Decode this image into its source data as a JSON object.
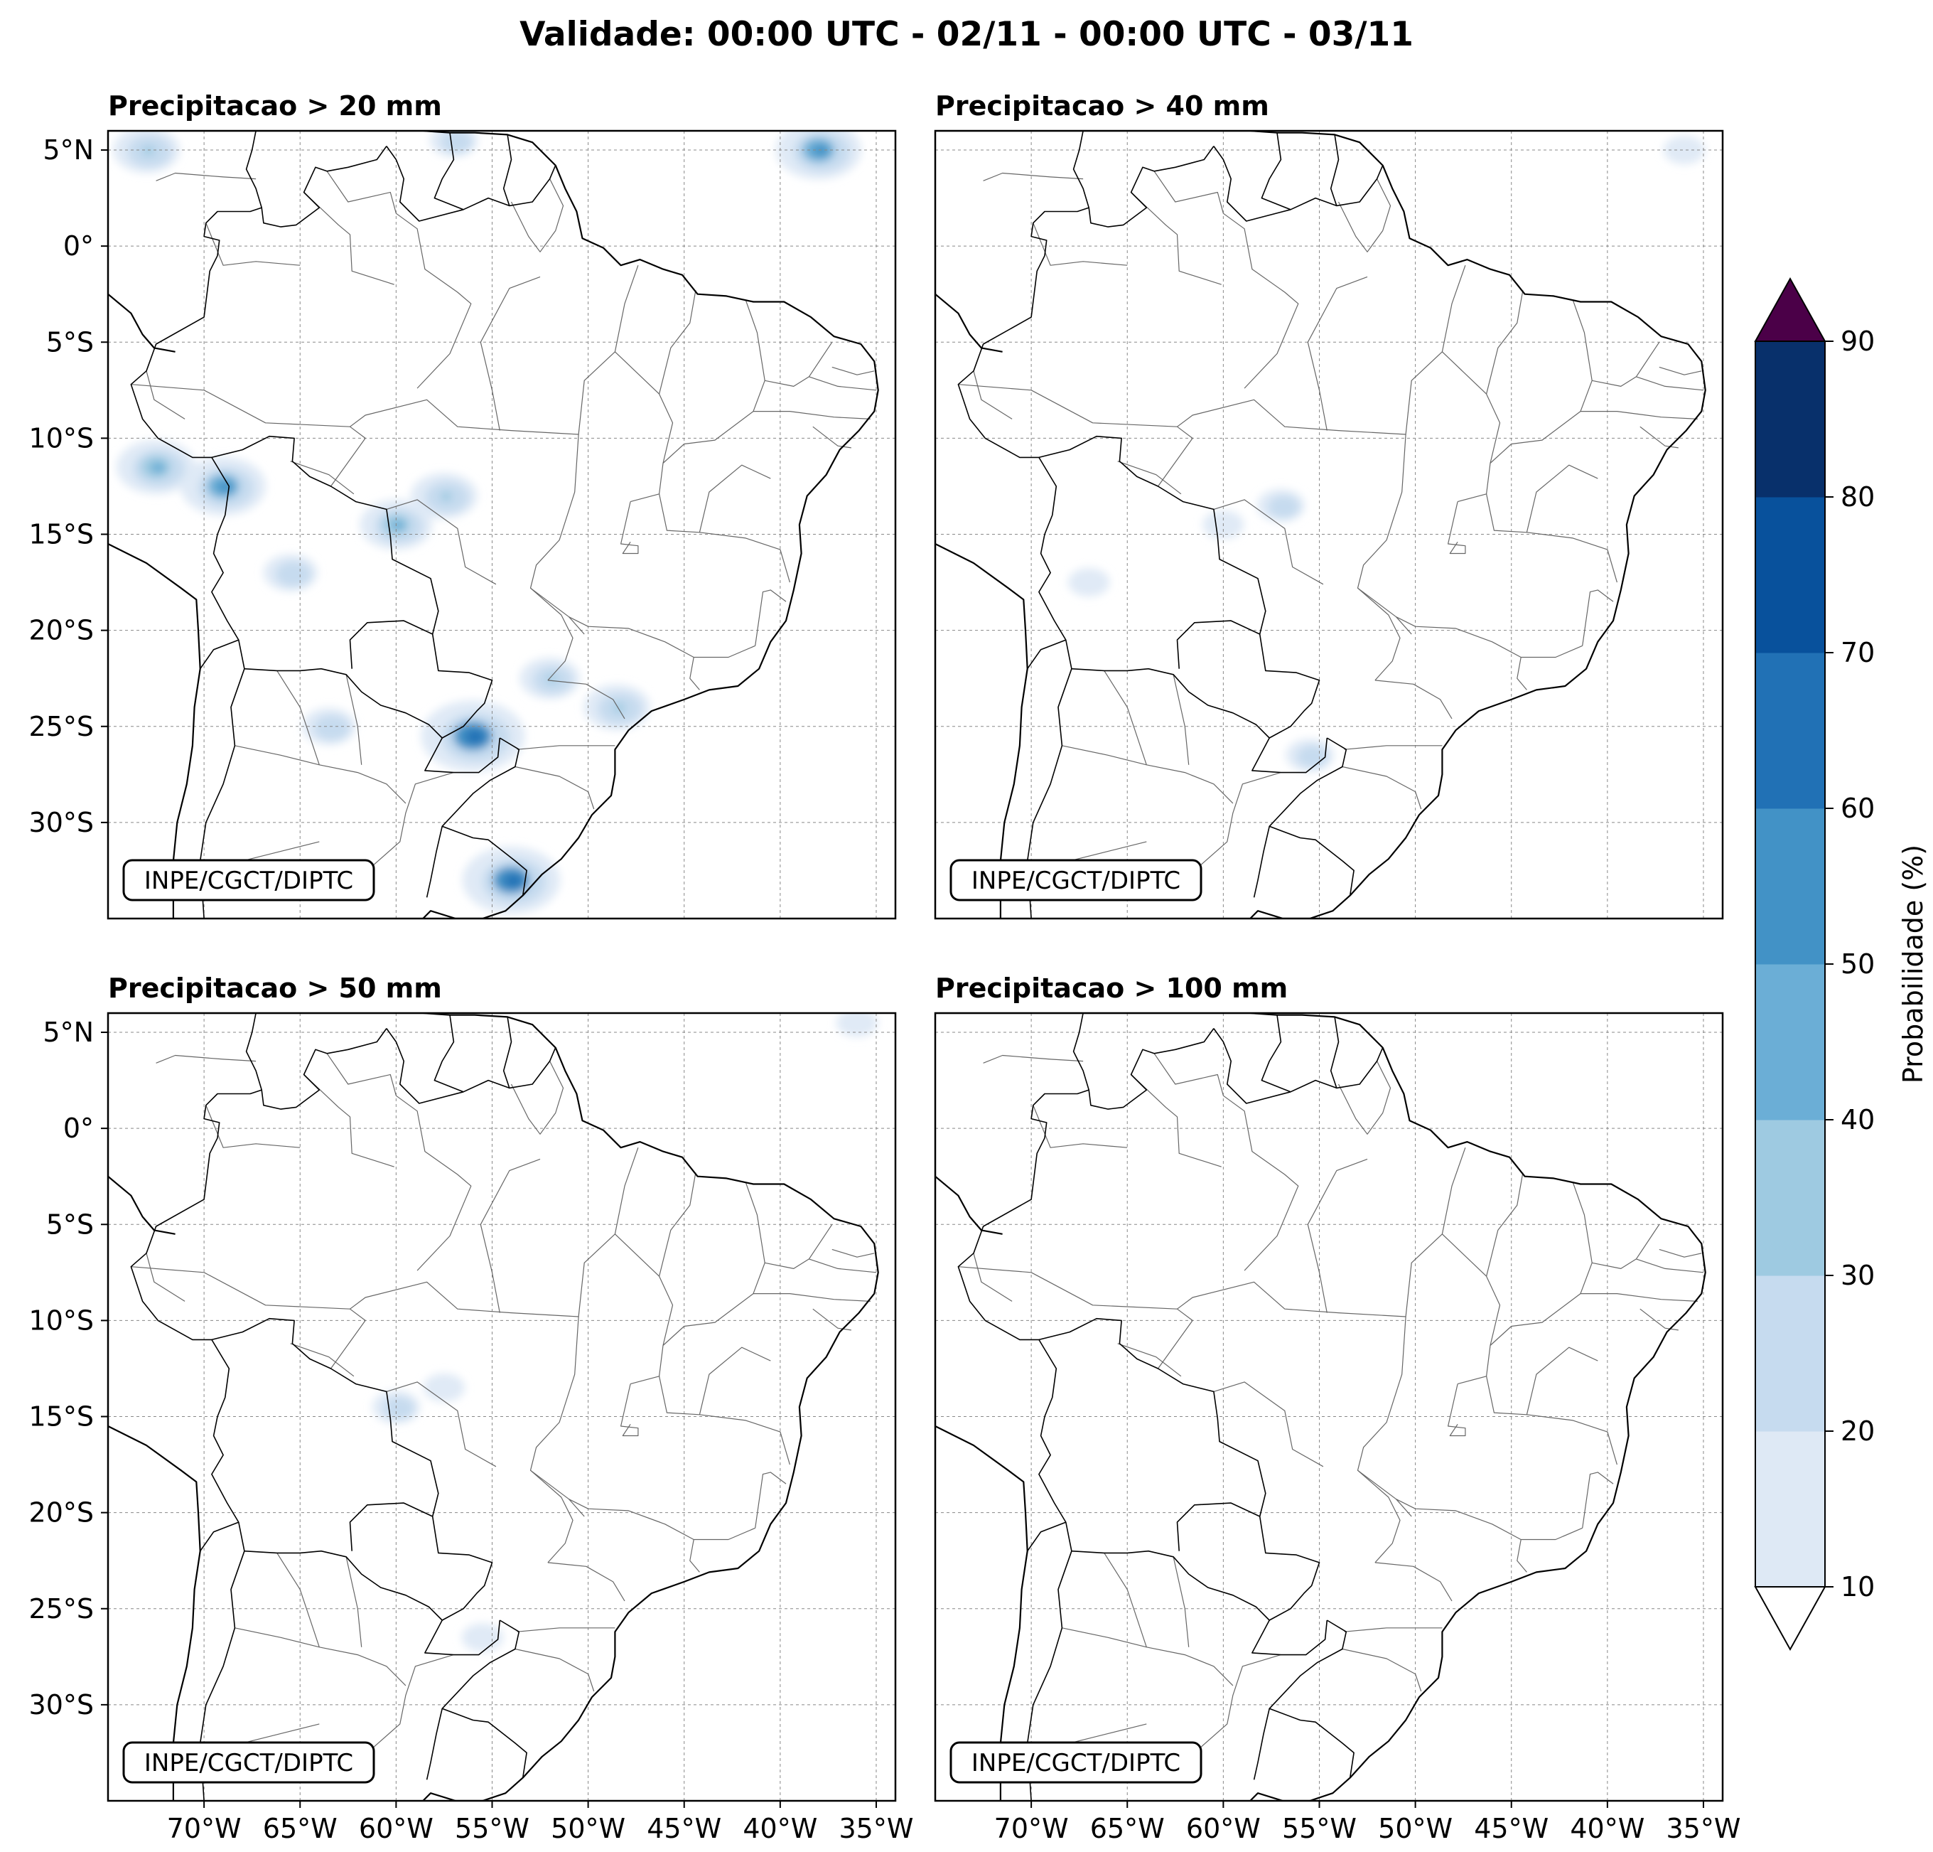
{
  "main_title": "Validade: 00:00 UTC - 02/11 - 00:00 UTC - 03/11",
  "credit": "INPE/CGCT/DIPTC",
  "panels": [
    {
      "title": "Precipitacao > 20 mm"
    },
    {
      "title": "Precipitacao > 40 mm"
    },
    {
      "title": "Precipitacao > 50 mm"
    },
    {
      "title": "Precipitacao > 100 mm"
    }
  ],
  "lat_labels": [
    "5°N",
    "0°",
    "5°S",
    "10°S",
    "15°S",
    "20°S",
    "25°S",
    "30°S"
  ],
  "lon_labels": [
    "70°W",
    "65°W",
    "60°W",
    "55°W",
    "50°W",
    "45°W",
    "40°W",
    "35°W"
  ],
  "colorbar": {
    "label": "Probabilidade (%)",
    "ticks": [
      "10",
      "20",
      "30",
      "40",
      "50",
      "60",
      "70",
      "80",
      "90"
    ],
    "colors": [
      "#dee9f5",
      "#c6dbef",
      "#9ecae1",
      "#6baed6",
      "#4292c6",
      "#2171b5",
      "#08519c",
      "#08306b"
    ],
    "over_color": "#4b0048",
    "under_color": "#ffffff"
  },
  "chart_data": {
    "type": "map",
    "extent": {
      "lon": [
        -75,
        -34
      ],
      "lat": [
        -35,
        6
      ]
    },
    "variable": "Probabilidade (%)",
    "levels": [
      10,
      20,
      30,
      40,
      50,
      60,
      70,
      80,
      90
    ],
    "panels": [
      {
        "threshold_mm": 20,
        "blobs": [
          {
            "lon": -72.5,
            "lat": -11.5,
            "p": 45
          },
          {
            "lon": -69.0,
            "lat": -12.5,
            "p": 50
          },
          {
            "lon": -60.0,
            "lat": -14.5,
            "p": 40
          },
          {
            "lon": -57.5,
            "lat": -13.0,
            "p": 35
          },
          {
            "lon": -56.0,
            "lat": -25.5,
            "p": 65
          },
          {
            "lon": -52.0,
            "lat": -22.5,
            "p": 30
          },
          {
            "lon": -48.5,
            "lat": -24.0,
            "p": 35
          },
          {
            "lon": -54.0,
            "lat": -33.0,
            "p": 60
          },
          {
            "lon": -65.5,
            "lat": -17.0,
            "p": 25
          },
          {
            "lon": -63.5,
            "lat": -25.0,
            "p": 25
          },
          {
            "lon": -73.0,
            "lat": 5.0,
            "p": 35
          },
          {
            "lon": -38.0,
            "lat": 5.0,
            "p": 50
          },
          {
            "lon": -57.0,
            "lat": 5.5,
            "p": 20
          }
        ]
      },
      {
        "threshold_mm": 40,
        "blobs": [
          {
            "lon": -57.0,
            "lat": -13.5,
            "p": 20
          },
          {
            "lon": -60.0,
            "lat": -14.5,
            "p": 15
          },
          {
            "lon": -55.5,
            "lat": -26.5,
            "p": 20
          },
          {
            "lon": -67.0,
            "lat": -17.5,
            "p": 15
          },
          {
            "lon": -36.0,
            "lat": 5.0,
            "p": 15
          }
        ]
      },
      {
        "threshold_mm": 50,
        "blobs": [
          {
            "lon": -57.5,
            "lat": -13.5,
            "p": 15
          },
          {
            "lon": -55.5,
            "lat": -26.5,
            "p": 15
          },
          {
            "lon": -60.0,
            "lat": -14.5,
            "p": 20
          },
          {
            "lon": -36.0,
            "lat": 5.5,
            "p": 15
          }
        ]
      },
      {
        "threshold_mm": 100,
        "blobs": []
      }
    ]
  }
}
